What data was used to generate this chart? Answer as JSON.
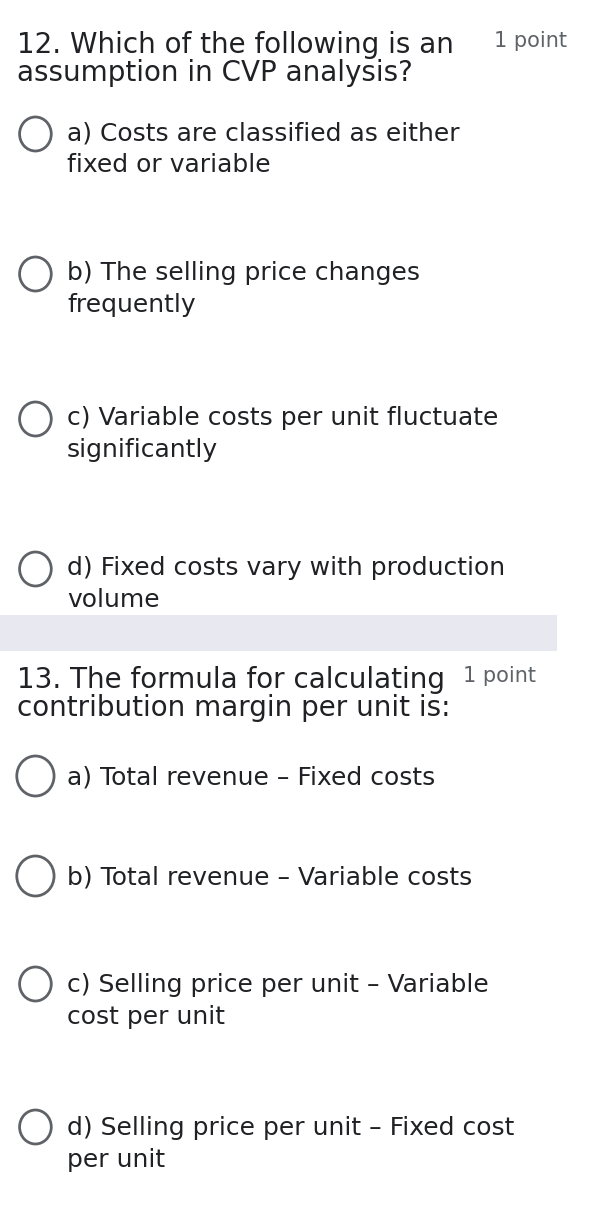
{
  "bg_color": "#ffffff",
  "divider_color": "#e8e8f0",
  "q1_number": "12.",
  "q1_text": "Which of the following is an",
  "q1_text2": "assumption in CVP analysis?",
  "q1_point": "1 point",
  "q1_options": [
    "a) Costs are classified as either\nfixed or variable",
    "b) The selling price changes\nfrequently",
    "c) Variable costs per unit fluctuate\nsignificantly",
    "d) Fixed costs vary with production\nvolume"
  ],
  "q2_number": "13.",
  "q2_text": "The formula for calculating",
  "q2_text2": "contribution margin per unit is:",
  "q2_point": "1 point",
  "q2_options": [
    "a) Total revenue – Fixed costs",
    "b) Total revenue – Variable costs",
    "c) Selling price per unit – Variable\ncost per unit",
    "d) Selling price per unit – Fixed cost\nper unit"
  ],
  "circle_color": "#5f6368",
  "text_color": "#202124",
  "point_color": "#5f6368",
  "q1_circle_sizes": [
    18,
    18,
    18,
    18
  ],
  "q2_circle_sizes": [
    22,
    22,
    18,
    18
  ],
  "title_fontsize": 20,
  "option_fontsize": 18,
  "point_fontsize": 15
}
